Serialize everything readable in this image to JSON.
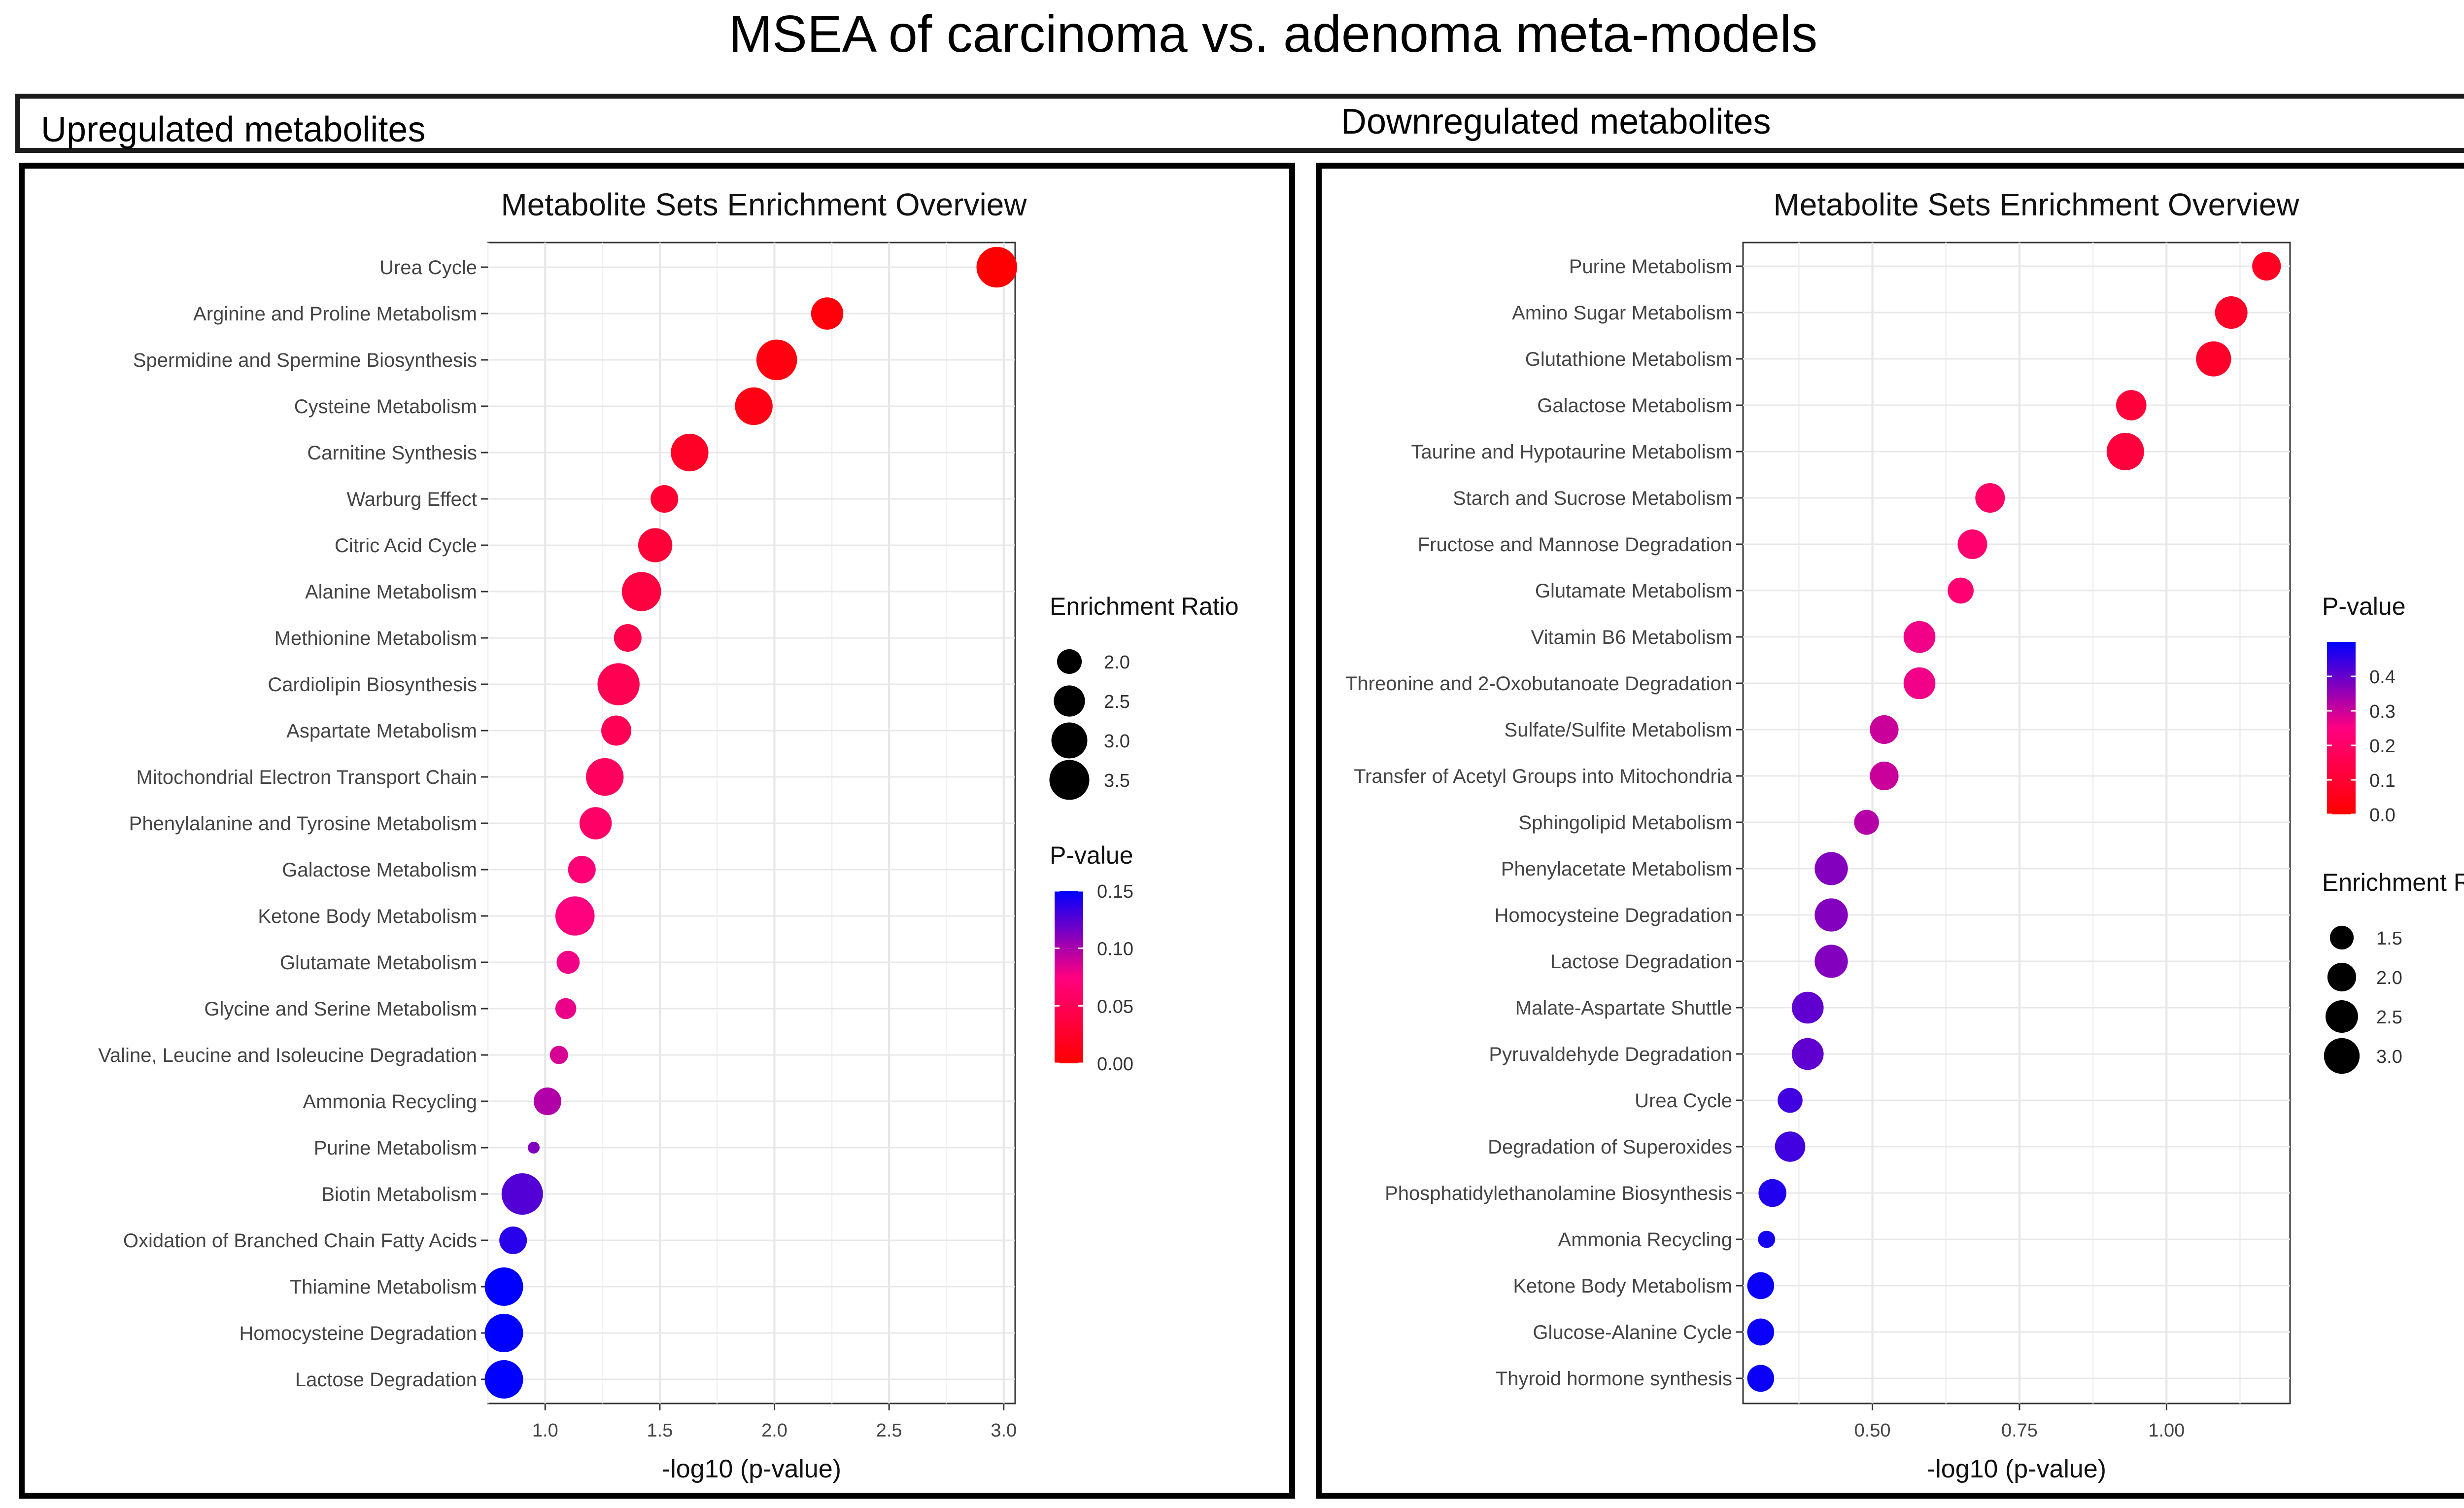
{
  "figure": {
    "title": "MSEA of carcinoma vs. adenoma meta-models",
    "left_header": "Upregulated metabolites",
    "right_header": "Downregulated metabolites"
  },
  "colors": {
    "low_p": "#ff0000",
    "mid_p": "#ff0080",
    "high_p": "#0000ff",
    "border": "#000000"
  },
  "chart_data": [
    {
      "type": "scatter",
      "title": "Metabolite Sets Enrichment Overview",
      "xlabel": "-log10 (p-value)",
      "xlim": [
        0.75,
        3.05
      ],
      "xticks": [
        1.0,
        1.5,
        2.0,
        2.5,
        3.0
      ],
      "xtick_labels": [
        "1.0",
        "1.5",
        "2.0",
        "2.5",
        "3.0"
      ],
      "size_legend": {
        "title": "Enrichment Ratio",
        "range": [
          1.6,
          3.7
        ],
        "values": [
          2.0,
          2.5,
          3.0,
          3.5
        ],
        "labels": [
          "2.0",
          "2.5",
          "3.0",
          "3.5"
        ]
      },
      "color_legend": {
        "title": "P-value",
        "range": [
          0,
          0.15
        ],
        "labels": [
          "0.15",
          "0.10",
          "0.05",
          "0.00"
        ],
        "values": [
          0.15,
          0.1,
          0.05,
          0.0
        ]
      },
      "points": [
        {
          "name": "Urea Cycle",
          "x": 2.97,
          "ratio": 3.6,
          "p": 0.0011
        },
        {
          "name": "Arginine and Proline Metabolism",
          "x": 2.23,
          "ratio": 2.6,
          "p": 0.006
        },
        {
          "name": "Spermidine and Spermine Biosynthesis",
          "x": 2.01,
          "ratio": 3.6,
          "p": 0.0098
        },
        {
          "name": "Cysteine Metabolism",
          "x": 1.91,
          "ratio": 3.2,
          "p": 0.012
        },
        {
          "name": "Carnitine Synthesis",
          "x": 1.63,
          "ratio": 3.2,
          "p": 0.023
        },
        {
          "name": "Warburg Effect",
          "x": 1.52,
          "ratio": 2.2,
          "p": 0.03
        },
        {
          "name": "Citric Acid Cycle",
          "x": 1.48,
          "ratio": 2.8,
          "p": 0.033
        },
        {
          "name": "Alanine Metabolism",
          "x": 1.42,
          "ratio": 3.4,
          "p": 0.038
        },
        {
          "name": "Methionine Metabolism",
          "x": 1.36,
          "ratio": 2.2,
          "p": 0.044
        },
        {
          "name": "Cardiolipin Biosynthesis",
          "x": 1.32,
          "ratio": 3.8,
          "p": 0.048
        },
        {
          "name": "Aspartate Metabolism",
          "x": 1.31,
          "ratio": 2.4,
          "p": 0.049
        },
        {
          "name": "Mitochondrial Electron Transport Chain",
          "x": 1.26,
          "ratio": 3.2,
          "p": 0.055
        },
        {
          "name": "Phenylalanine and Tyrosine Metabolism",
          "x": 1.22,
          "ratio": 2.6,
          "p": 0.06
        },
        {
          "name": "Galactose Metabolism",
          "x": 1.16,
          "ratio": 2.2,
          "p": 0.069
        },
        {
          "name": "Ketone Body Metabolism",
          "x": 1.13,
          "ratio": 3.4,
          "p": 0.074
        },
        {
          "name": "Glutamate Metabolism",
          "x": 1.1,
          "ratio": 1.9,
          "p": 0.079
        },
        {
          "name": "Glycine and Serine Metabolism",
          "x": 1.09,
          "ratio": 1.8,
          "p": 0.081
        },
        {
          "name": "Valine, Leucine and Isoleucine Degradation",
          "x": 1.06,
          "ratio": 1.7,
          "p": 0.087
        },
        {
          "name": "Ammonia Recycling",
          "x": 1.01,
          "ratio": 2.2,
          "p": 0.098
        },
        {
          "name": "Purine Metabolism",
          "x": 0.95,
          "ratio": 1.2,
          "p": 0.112
        },
        {
          "name": "Biotin Metabolism",
          "x": 0.9,
          "ratio": 3.7,
          "p": 0.126
        },
        {
          "name": "Oxidation of Branched Chain Fatty Acids",
          "x": 0.86,
          "ratio": 2.2,
          "p": 0.138
        },
        {
          "name": "Thiamine Metabolism",
          "x": 0.82,
          "ratio": 3.3,
          "p": 0.151
        },
        {
          "name": "Homocysteine Degradation",
          "x": 0.82,
          "ratio": 3.3,
          "p": 0.151
        },
        {
          "name": "Lactose Degradation",
          "x": 0.82,
          "ratio": 3.3,
          "p": 0.151
        }
      ]
    },
    {
      "type": "scatter",
      "title": "Metabolite Sets Enrichment Overview",
      "xlabel": "-log10 (p-value)",
      "xlim": [
        0.28,
        1.21
      ],
      "xticks": [
        0.5,
        0.75,
        1.0
      ],
      "xtick_labels": [
        "0.50",
        "0.75",
        "1.00"
      ],
      "size_legend": {
        "title": "Enrichment Ratio",
        "range": [
          1.0,
          3.3
        ],
        "values": [
          1.5,
          2.0,
          2.5,
          3.0
        ],
        "labels": [
          "1.5",
          "2.0",
          "2.5",
          "3.0"
        ]
      },
      "color_legend": {
        "title": "P-value",
        "range": [
          0,
          0.5
        ],
        "labels": [
          "0.4",
          "0.3",
          "0.2",
          "0.1",
          "0.0"
        ],
        "values": [
          0.4,
          0.3,
          0.2,
          0.1,
          0.0
        ]
      },
      "points": [
        {
          "name": "Purine Metabolism",
          "x": 1.17,
          "ratio": 2.0,
          "p": 0.068
        },
        {
          "name": "Amino Sugar Metabolism",
          "x": 1.11,
          "ratio": 2.5,
          "p": 0.078
        },
        {
          "name": "Glutathione Metabolism",
          "x": 1.08,
          "ratio": 2.9,
          "p": 0.083
        },
        {
          "name": "Galactose Metabolism",
          "x": 0.94,
          "ratio": 2.2,
          "p": 0.115
        },
        {
          "name": "Taurine and Hypotaurine Metabolism",
          "x": 0.93,
          "ratio": 3.3,
          "p": 0.117
        },
        {
          "name": "Starch and Sucrose Metabolism",
          "x": 0.7,
          "ratio": 2.1,
          "p": 0.2
        },
        {
          "name": "Fructose and Mannose Degradation",
          "x": 0.67,
          "ratio": 2.1,
          "p": 0.214
        },
        {
          "name": "Glutamate Metabolism",
          "x": 0.65,
          "ratio": 1.7,
          "p": 0.224
        },
        {
          "name": "Vitamin B6 Metabolism",
          "x": 0.58,
          "ratio": 2.4,
          "p": 0.263
        },
        {
          "name": "Threonine and 2-Oxobutanoate Degradation",
          "x": 0.58,
          "ratio": 2.4,
          "p": 0.263
        },
        {
          "name": "Sulfate/Sulfite Metabolism",
          "x": 0.52,
          "ratio": 2.0,
          "p": 0.302
        },
        {
          "name": "Transfer of Acetyl Groups into Mitochondria",
          "x": 0.52,
          "ratio": 2.0,
          "p": 0.302
        },
        {
          "name": "Sphingolipid Metabolism",
          "x": 0.49,
          "ratio": 1.6,
          "p": 0.324
        },
        {
          "name": "Phenylacetate Metabolism",
          "x": 0.43,
          "ratio": 2.6,
          "p": 0.372
        },
        {
          "name": "Homocysteine Degradation",
          "x": 0.43,
          "ratio": 2.6,
          "p": 0.372
        },
        {
          "name": "Lactose Degradation",
          "x": 0.43,
          "ratio": 2.6,
          "p": 0.372
        },
        {
          "name": "Malate-Aspartate Shuttle",
          "x": 0.39,
          "ratio": 2.4,
          "p": 0.407
        },
        {
          "name": "Pyruvaldehyde Degradation",
          "x": 0.39,
          "ratio": 2.4,
          "p": 0.407
        },
        {
          "name": "Urea Cycle",
          "x": 0.36,
          "ratio": 1.6,
          "p": 0.437
        },
        {
          "name": "Degradation of Superoxides",
          "x": 0.36,
          "ratio": 2.2,
          "p": 0.437
        },
        {
          "name": "Phosphatidylethanolamine Biosynthesis",
          "x": 0.33,
          "ratio": 1.9,
          "p": 0.468
        },
        {
          "name": "Ammonia Recycling",
          "x": 0.32,
          "ratio": 1.1,
          "p": 0.479
        },
        {
          "name": "Ketone Body Metabolism",
          "x": 0.31,
          "ratio": 1.8,
          "p": 0.49
        },
        {
          "name": "Glucose-Alanine Cycle",
          "x": 0.31,
          "ratio": 1.8,
          "p": 0.49
        },
        {
          "name": "Thyroid hormone synthesis",
          "x": 0.31,
          "ratio": 1.8,
          "p": 0.49
        }
      ]
    }
  ]
}
